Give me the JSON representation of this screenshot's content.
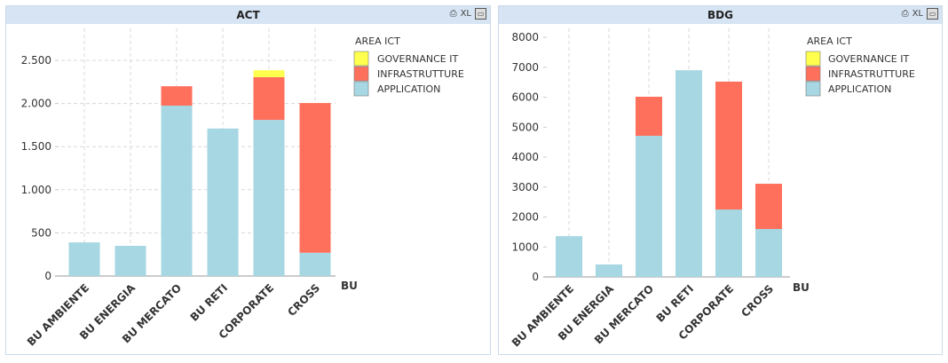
{
  "colors": {
    "GOVERNANCE IT": "#ffff4d",
    "INFRASTRUTTURE": "#ff705c",
    "APPLICATION": "#a6d7e2"
  },
  "header_icons": {
    "print": "printer-icon",
    "xl": "XL",
    "minimize": "minimize-icon"
  },
  "chart_data": [
    {
      "type": "bar",
      "stacked": true,
      "title": "ACT",
      "xlabel": "BU",
      "legend_title": "AREA ICT",
      "legend_position": "right",
      "categories": [
        "BU AMBIENTE",
        "BU ENERGIA",
        "BU MERCATO",
        "BU RETI",
        "CORPORATE",
        "CROSS"
      ],
      "ylim": [
        0,
        2800
      ],
      "yticks": [
        0,
        500,
        1000,
        1500,
        2000,
        2500
      ],
      "ytick_labels": [
        "0",
        "500",
        "1.000",
        "1.500",
        "2.000",
        "2.500"
      ],
      "grid": true,
      "series": [
        {
          "name": "APPLICATION",
          "values": [
            390,
            350,
            1975,
            1710,
            1810,
            270
          ]
        },
        {
          "name": "INFRASTRUTTURE",
          "values": [
            0,
            0,
            225,
            0,
            495,
            1735
          ]
        },
        {
          "name": "GOVERNANCE IT",
          "values": [
            0,
            0,
            0,
            0,
            80,
            0
          ]
        }
      ],
      "legend": [
        "GOVERNANCE IT",
        "INFRASTRUTTURE",
        "APPLICATION"
      ]
    },
    {
      "type": "bar",
      "stacked": true,
      "title": "BDG",
      "xlabel": "BU",
      "legend_title": "AREA ICT",
      "legend_position": "right",
      "categories": [
        "BU AMBIENTE",
        "BU ENERGIA",
        "BU MERCATO",
        "BU RETI",
        "CORPORATE",
        "CROSS"
      ],
      "ylim": [
        0,
        8000
      ],
      "yticks": [
        0,
        1000,
        2000,
        3000,
        4000,
        5000,
        6000,
        7000,
        8000
      ],
      "ytick_labels": [
        "0",
        "1000",
        "2000",
        "3000",
        "4000",
        "5000",
        "6000",
        "7000",
        "8000"
      ],
      "grid": false,
      "series": [
        {
          "name": "APPLICATION",
          "values": [
            1360,
            415,
            4710,
            6900,
            2250,
            1600
          ]
        },
        {
          "name": "INFRASTRUTTURE",
          "values": [
            0,
            0,
            1305,
            0,
            4270,
            1510
          ]
        },
        {
          "name": "GOVERNANCE IT",
          "values": [
            0,
            0,
            0,
            0,
            0,
            0
          ]
        }
      ],
      "legend": [
        "GOVERNANCE IT",
        "INFRASTRUTTURE",
        "APPLICATION"
      ]
    }
  ]
}
